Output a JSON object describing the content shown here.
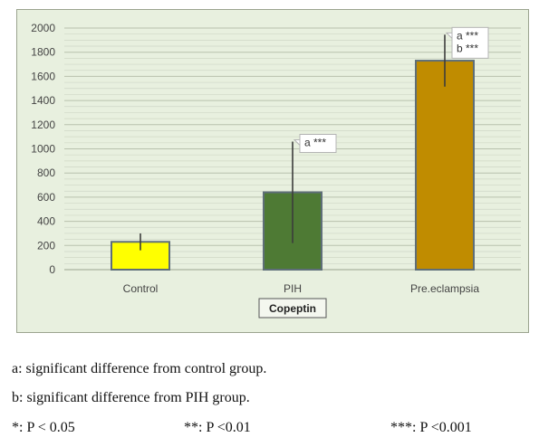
{
  "chart_data": {
    "type": "bar",
    "title": "",
    "xlabel": "Copeptin",
    "ylabel": "",
    "ylim": [
      0,
      2000
    ],
    "yticks": [
      0,
      200,
      400,
      600,
      800,
      1000,
      1200,
      1400,
      1600,
      1800,
      2000
    ],
    "categories": [
      "Control",
      "PIH",
      "Pre.eclampsia"
    ],
    "values": [
      230,
      640,
      1730
    ],
    "error": [
      70,
      420,
      215
    ],
    "colors": [
      "#ffff00",
      "#4e7a34",
      "#c08c00"
    ],
    "annotations": [
      {
        "category": "PIH",
        "lines": [
          "a ***"
        ]
      },
      {
        "category": "Pre.eclampsia",
        "lines": [
          "a ***",
          "b ***"
        ]
      }
    ],
    "grid": true,
    "legend": "none"
  },
  "footnotes": {
    "a": "a: significant difference from control group.",
    "b": "b: significant difference from PIH group.",
    "p1": "*: P < 0.05",
    "p2": "**: P <0.01",
    "p3": "***: P <0.001"
  }
}
